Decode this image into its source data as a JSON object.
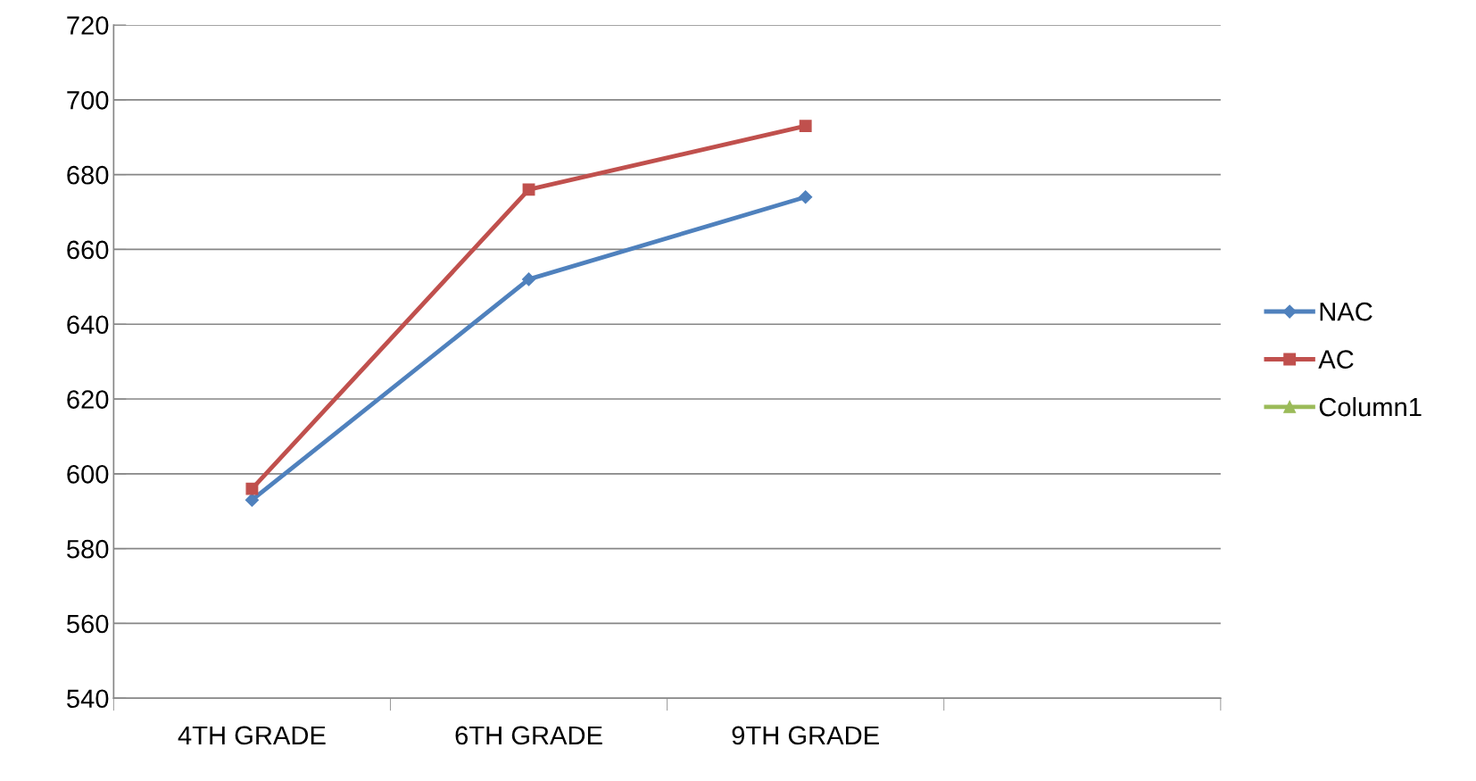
{
  "chart_data": {
    "type": "line",
    "categories": [
      "4TH GRADE",
      "6TH GRADE",
      "9TH GRADE",
      null
    ],
    "series": [
      {
        "name": "NAC",
        "color": "#4f81bd",
        "marker": "diamond",
        "values": [
          593,
          652,
          674,
          null
        ]
      },
      {
        "name": "AC",
        "color": "#c0504d",
        "marker": "square",
        "values": [
          596,
          676,
          693,
          null
        ]
      },
      {
        "name": "Column1",
        "color": "#9bbb59",
        "marker": "triangle",
        "values": [
          null,
          null,
          null,
          null
        ]
      }
    ],
    "ylim": [
      540,
      720
    ],
    "yticks": [
      540,
      560,
      580,
      600,
      620,
      640,
      660,
      680,
      700,
      720
    ],
    "grid": "y",
    "legend": "right",
    "line_style": "solid"
  }
}
